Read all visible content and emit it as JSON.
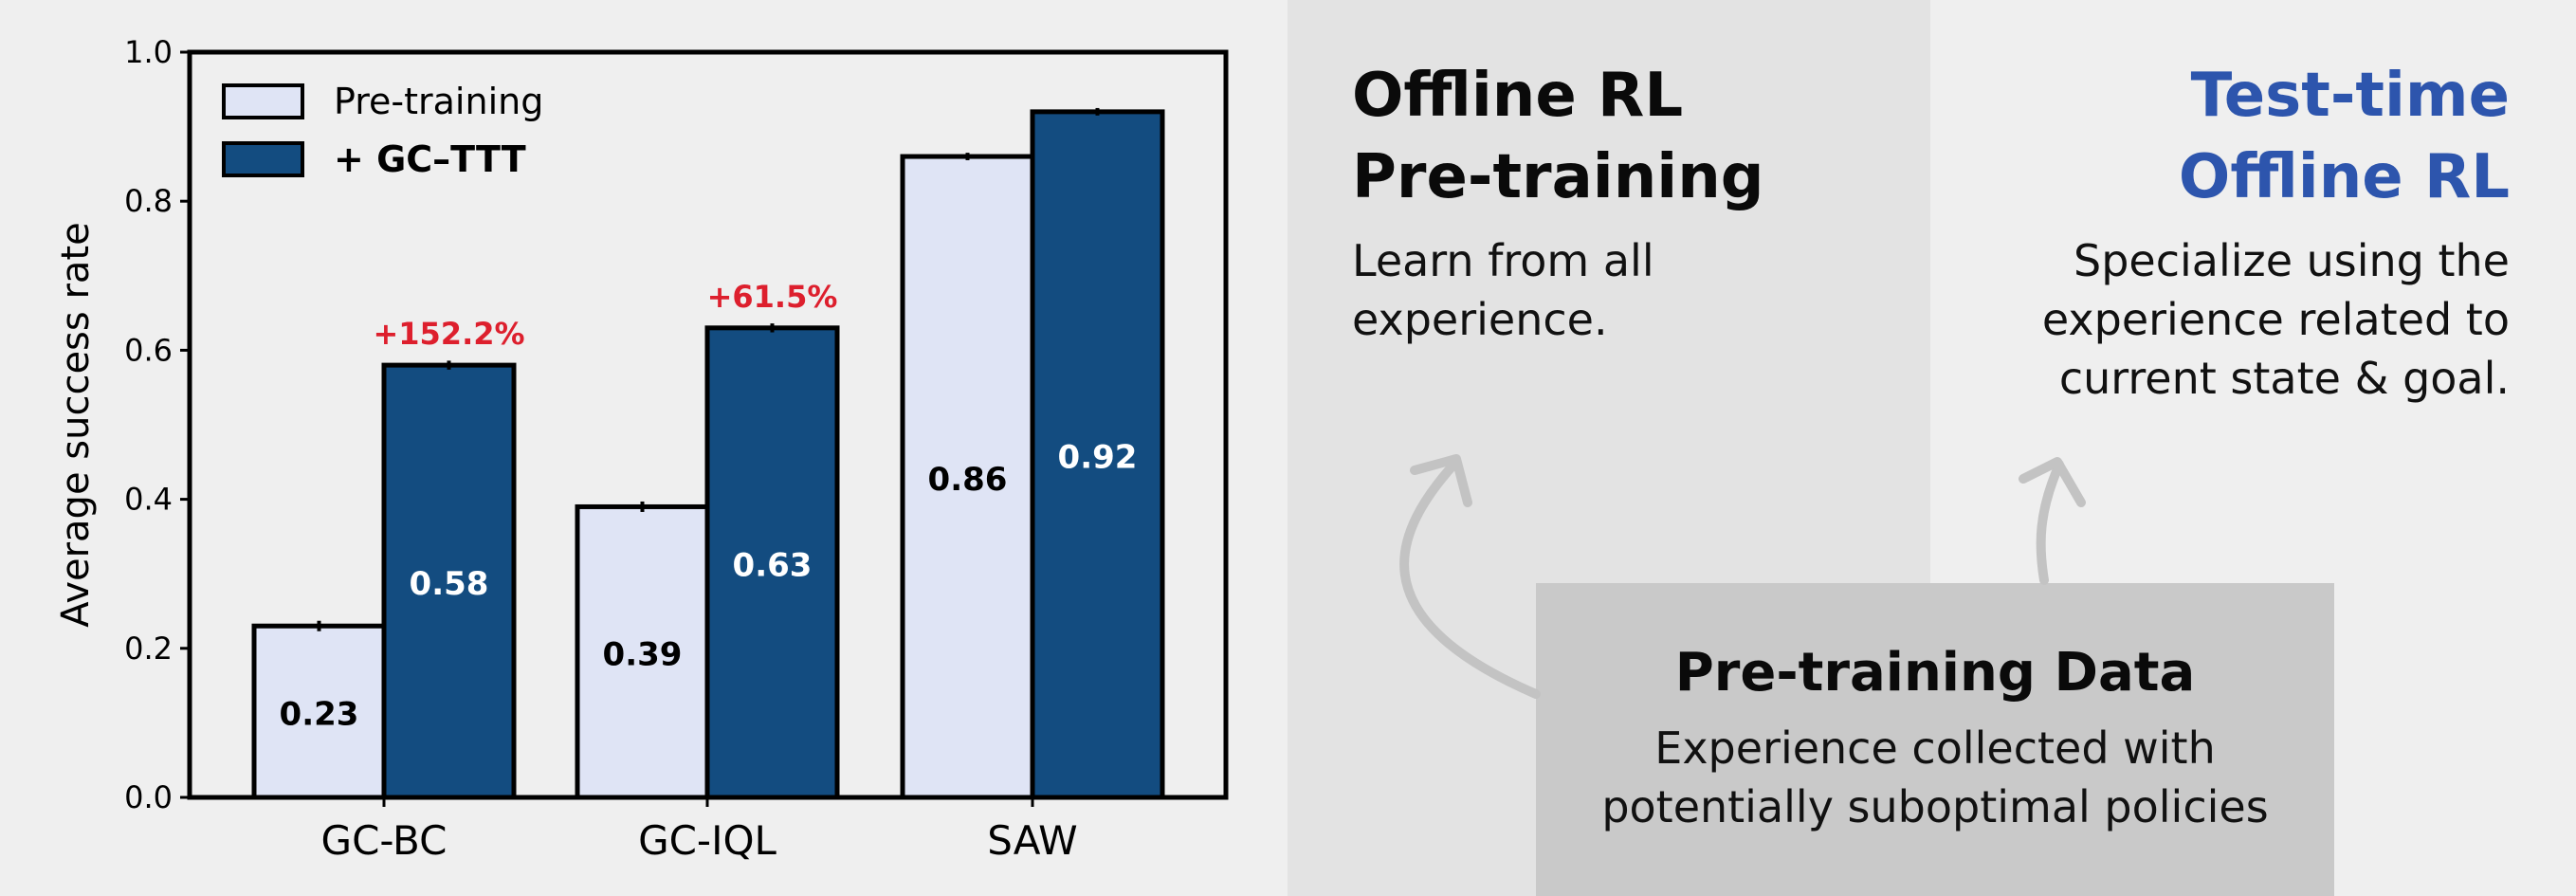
{
  "chart_data": {
    "type": "bar",
    "categories": [
      "GC-BC",
      "GC-IQL",
      "SAW"
    ],
    "series": [
      {
        "name": "Pre-training",
        "values": [
          0.23,
          0.39,
          0.86
        ],
        "color": "#dfe4f5"
      },
      {
        "name": "+ GC–TTT",
        "values": [
          0.58,
          0.63,
          0.92
        ],
        "color": "#134c80"
      }
    ],
    "errors": [
      [
        0.007,
        0.007,
        0.005
      ],
      [
        0.006,
        0.006,
        0.005
      ]
    ],
    "value_labels": [
      [
        "0.23",
        "0.39",
        "0.86"
      ],
      [
        "0.58",
        "0.63",
        "0.92"
      ]
    ],
    "improvement_labels": [
      "+152.2%",
      "+61.5%",
      ""
    ],
    "improvement_color": "#dd1f2d",
    "ylabel": "Average success rate",
    "xlabel": "",
    "ylim": [
      0,
      1.0
    ],
    "yticks": [
      0.0,
      0.2,
      0.4,
      0.6,
      0.8,
      1.0
    ],
    "ytick_labels": [
      "0.0",
      "0.2",
      "0.4",
      "0.6",
      "0.8",
      "1.0"
    ],
    "legend_position": "top-left",
    "grid": false
  },
  "panels": {
    "offline": {
      "title_line1": "Offline RL",
      "title_line2": "Pre-training",
      "desc_line1": "Learn from all",
      "desc_line2": "experience."
    },
    "testtime": {
      "title_line1": "Test-time",
      "title_line2": "Offline RL",
      "desc_line1": "Specialize using the",
      "desc_line2": "experience related to",
      "desc_line3": "current state & goal.",
      "title_color": "#2d55ad"
    },
    "data": {
      "title": "Pre-training Data",
      "desc_line1": "Experience collected with",
      "desc_line2": "potentially suboptimal policies"
    }
  }
}
